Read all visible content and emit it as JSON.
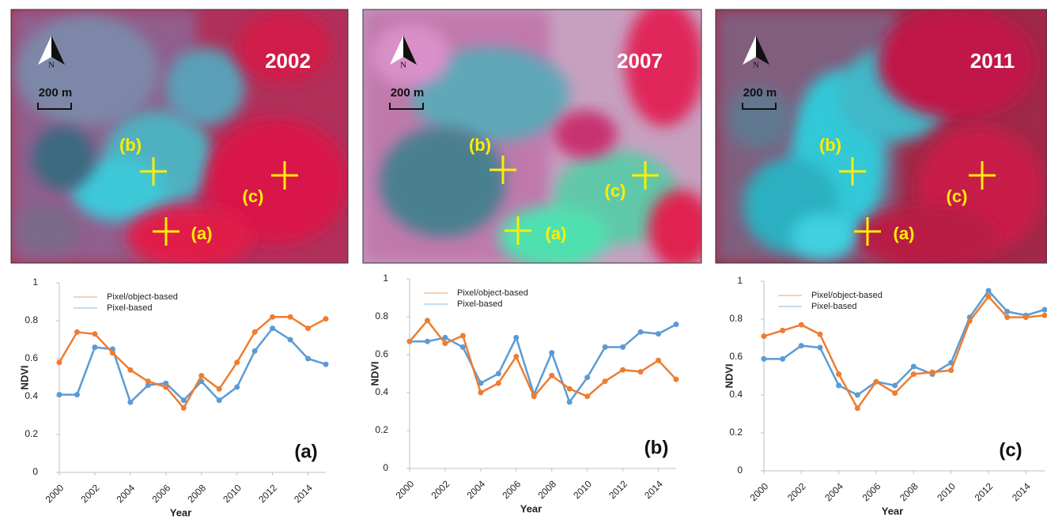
{
  "images": [
    {
      "year": "2002",
      "north": "N",
      "scale": "200 m",
      "points": [
        "(b)",
        "(c)",
        "(a)"
      ]
    },
    {
      "year": "2007",
      "north": "N",
      "scale": "200 m",
      "points": [
        "(b)",
        "(c)",
        "(a)"
      ]
    },
    {
      "year": "2011",
      "north": "N",
      "scale": "200 m",
      "points": [
        "(b)",
        "(c)",
        "(a)"
      ]
    }
  ],
  "chart_data": [
    {
      "type": "line",
      "panel_label": "(a)",
      "x_label": "Year",
      "y_label": "NDVI",
      "x": [
        2000,
        2001,
        2002,
        2003,
        2004,
        2005,
        2006,
        2007,
        2008,
        2009,
        2010,
        2011,
        2012,
        2013,
        2014,
        2015
      ],
      "xlim": [
        2000,
        2015
      ],
      "xticks": [
        2000,
        2002,
        2004,
        2006,
        2008,
        2010,
        2012,
        2014
      ],
      "ylim": [
        0,
        1
      ],
      "yticks": [
        0,
        0.2,
        0.4,
        0.6,
        0.8,
        1
      ],
      "series": [
        {
          "name": "Pixel/object-based",
          "color": "#ed7d31",
          "values": [
            0.58,
            0.74,
            0.73,
            0.63,
            0.54,
            0.48,
            0.45,
            0.34,
            0.51,
            0.44,
            0.58,
            0.74,
            0.82,
            0.82,
            0.76,
            0.81
          ]
        },
        {
          "name": "Pixel-based",
          "color": "#5b9bd5",
          "values": [
            0.41,
            0.41,
            0.66,
            0.65,
            0.37,
            0.46,
            0.47,
            0.38,
            0.48,
            0.38,
            0.45,
            0.64,
            0.76,
            0.7,
            0.6,
            0.57
          ]
        }
      ]
    },
    {
      "type": "line",
      "panel_label": "(b)",
      "x_label": "Year",
      "y_label": "NDVI",
      "x": [
        2000,
        2001,
        2002,
        2003,
        2004,
        2005,
        2006,
        2007,
        2008,
        2009,
        2010,
        2011,
        2012,
        2013,
        2014,
        2015
      ],
      "xlim": [
        2000,
        2015
      ],
      "xticks": [
        2000,
        2002,
        2004,
        2006,
        2008,
        2010,
        2012,
        2014
      ],
      "ylim": [
        0,
        1
      ],
      "yticks": [
        0,
        0.2,
        0.4,
        0.6,
        0.8,
        1
      ],
      "series": [
        {
          "name": "Pixel/object-based",
          "color": "#ed7d31",
          "values": [
            0.67,
            0.78,
            0.66,
            0.7,
            0.4,
            0.45,
            0.59,
            0.38,
            0.49,
            0.42,
            0.38,
            0.46,
            0.52,
            0.51,
            0.57,
            0.47
          ]
        },
        {
          "name": "Pixel-based",
          "color": "#5b9bd5",
          "values": [
            0.67,
            0.67,
            0.69,
            0.64,
            0.45,
            0.5,
            0.69,
            0.39,
            0.61,
            0.35,
            0.48,
            0.64,
            0.64,
            0.72,
            0.71,
            0.76
          ]
        }
      ]
    },
    {
      "type": "line",
      "panel_label": "(c)",
      "x_label": "Year",
      "y_label": "NDVI",
      "x": [
        2000,
        2001,
        2002,
        2003,
        2004,
        2005,
        2006,
        2007,
        2008,
        2009,
        2010,
        2011,
        2012,
        2013,
        2014,
        2015
      ],
      "xlim": [
        2000,
        2015
      ],
      "xticks": [
        2000,
        2002,
        2004,
        2006,
        2008,
        2010,
        2012,
        2014
      ],
      "ylim": [
        0,
        1
      ],
      "yticks": [
        0,
        0.2,
        0.4,
        0.6,
        0.8,
        1
      ],
      "series": [
        {
          "name": "Pixel/object-based",
          "color": "#ed7d31",
          "values": [
            0.71,
            0.74,
            0.77,
            0.72,
            0.51,
            0.33,
            0.47,
            0.41,
            0.51,
            0.52,
            0.53,
            0.79,
            0.92,
            0.81,
            0.81,
            0.82
          ]
        },
        {
          "name": "Pixel-based",
          "color": "#5b9bd5",
          "values": [
            0.59,
            0.59,
            0.66,
            0.65,
            0.45,
            0.4,
            0.47,
            0.45,
            0.55,
            0.51,
            0.57,
            0.81,
            0.95,
            0.84,
            0.82,
            0.85
          ]
        }
      ]
    }
  ]
}
